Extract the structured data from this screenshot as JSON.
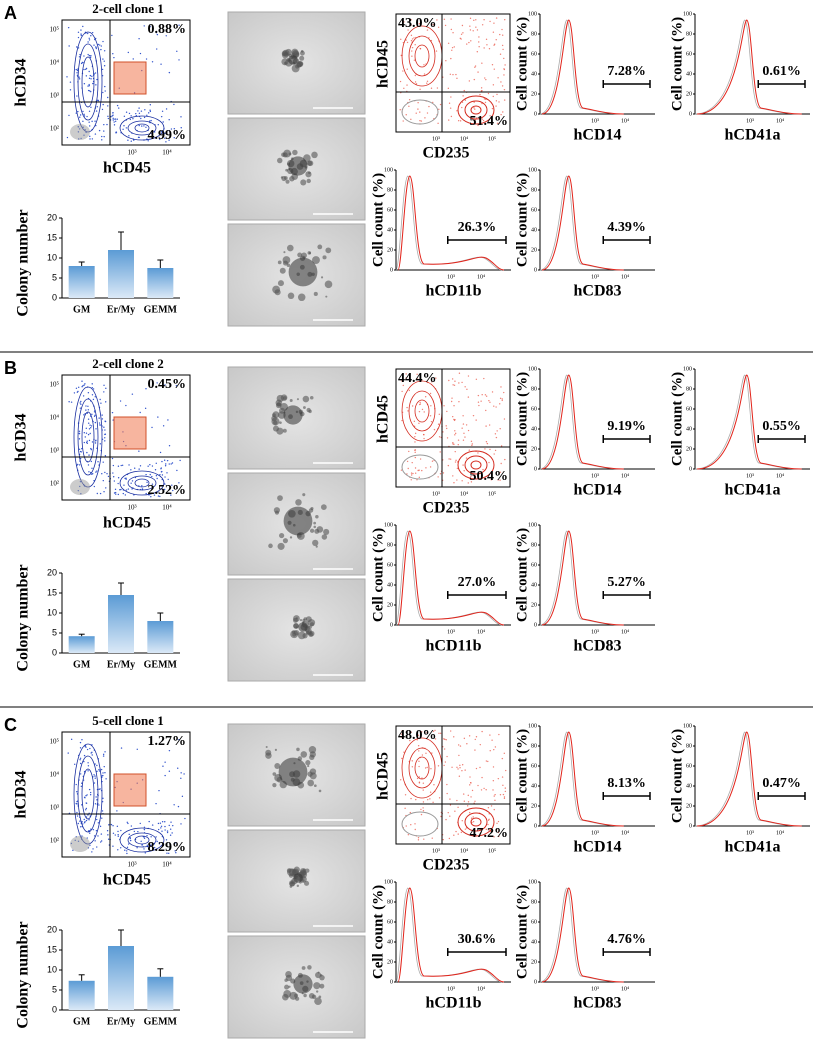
{
  "common": {
    "hist_y_label": "Cell count (%)",
    "hist_ylim": [
      0,
      100
    ],
    "hist_yticks": [
      0,
      20,
      40,
      60,
      80,
      100
    ],
    "log_ticks": [
      "10²",
      "10³",
      "10⁴",
      "10⁵"
    ]
  },
  "panels": [
    {
      "letter": "A",
      "clone": "2-cell clone 1",
      "flow": {
        "y_label": "hCD34",
        "x_label": "hCD45",
        "upper_right": "0.88%",
        "lower_right": "4.99%"
      },
      "colony": {
        "y_label": "Colony number",
        "categories": [
          "GM",
          "Er/My",
          "GEMM"
        ],
        "values": [
          8,
          12,
          7.5
        ],
        "errors": [
          1,
          4.5,
          2
        ],
        "ylim": [
          0,
          20
        ],
        "yticks": [
          0,
          5,
          10,
          15,
          20
        ]
      },
      "cd45_cd235": {
        "y_label": "hCD45",
        "x_label": "CD235",
        "upper_left": "43.0%",
        "lower_right": "51.4%"
      },
      "histograms": [
        {
          "x_label": "hCD14",
          "gate": "7.28%"
        },
        {
          "x_label": "hCD41a",
          "gate": "0.61%"
        },
        {
          "x_label": "hCD11b",
          "gate": "26.3%"
        },
        {
          "x_label": "hCD83",
          "gate": "4.39%"
        }
      ]
    },
    {
      "letter": "B",
      "clone": "2-cell clone 2",
      "flow": {
        "y_label": "hCD34",
        "x_label": "hCD45",
        "upper_right": "0.45%",
        "lower_right": "2.52%"
      },
      "colony": {
        "y_label": "Colony number",
        "categories": [
          "GM",
          "Er/My",
          "GEMM"
        ],
        "values": [
          4.2,
          14.5,
          8
        ],
        "errors": [
          0.5,
          3,
          2
        ],
        "ylim": [
          0,
          20
        ],
        "yticks": [
          0,
          5,
          10,
          15,
          20
        ]
      },
      "cd45_cd235": {
        "y_label": "hCD45",
        "x_label": "CD235",
        "upper_left": "44.4%",
        "lower_right": "50.4%"
      },
      "histograms": [
        {
          "x_label": "hCD14",
          "gate": "9.19%"
        },
        {
          "x_label": "hCD41a",
          "gate": "0.55%"
        },
        {
          "x_label": "hCD11b",
          "gate": "27.0%"
        },
        {
          "x_label": "hCD83",
          "gate": "5.27%"
        }
      ]
    },
    {
      "letter": "C",
      "clone": "5-cell clone 1",
      "flow": {
        "y_label": "hCD34",
        "x_label": "hCD45",
        "upper_right": "1.27%",
        "lower_right": "8.29%"
      },
      "colony": {
        "y_label": "Colony number",
        "categories": [
          "GM",
          "Er/My",
          "GEMM"
        ],
        "values": [
          7.3,
          16,
          8.3
        ],
        "errors": [
          1.5,
          4,
          2
        ],
        "ylim": [
          0,
          20
        ],
        "yticks": [
          0,
          5,
          10,
          15,
          20
        ]
      },
      "cd45_cd235": {
        "y_label": "hCD45",
        "x_label": "CD235",
        "upper_left": "48.0%",
        "lower_right": "47.2%"
      },
      "histograms": [
        {
          "x_label": "hCD14",
          "gate": "8.13%"
        },
        {
          "x_label": "hCD41a",
          "gate": "0.47%"
        },
        {
          "x_label": "hCD11b",
          "gate": "30.6%"
        },
        {
          "x_label": "hCD83",
          "gate": "4.76%"
        }
      ]
    }
  ]
}
